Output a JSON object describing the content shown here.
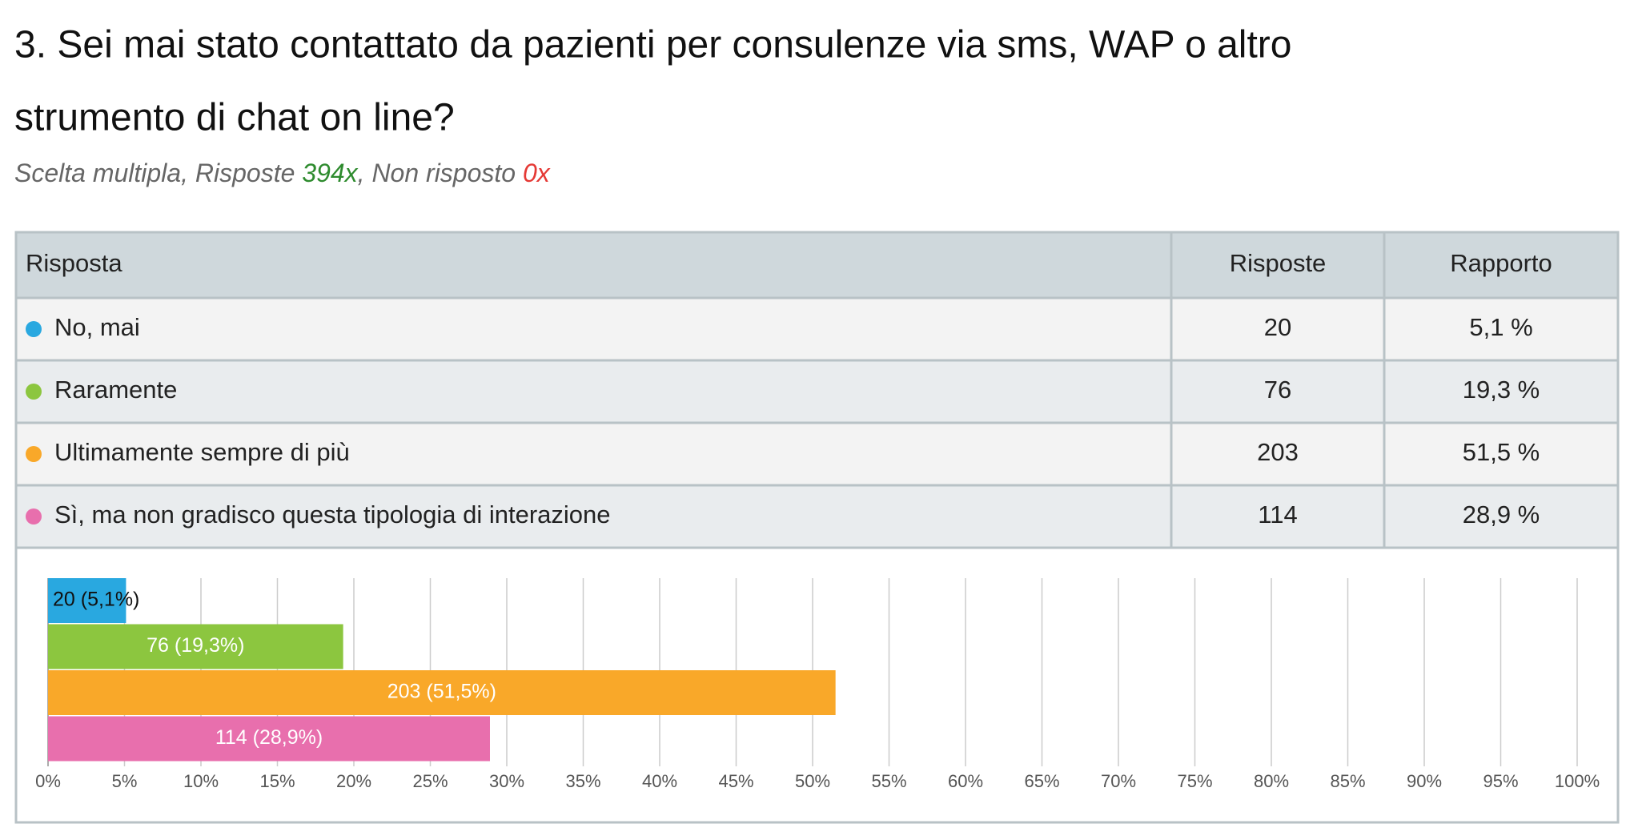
{
  "title_lines": [
    "3. Sei mai stato contattato da pazienti per consulenze via sms, WAP o altro",
    "strumento di chat on line?"
  ],
  "subtitle": [
    "Scelta multipla, Risposte ",
    "394x",
    ", Non risposto ",
    "0x"
  ],
  "table": {
    "header": [
      "Risposta",
      "Risposte",
      "Rapporto"
    ],
    "rows": [
      [
        "No, mai",
        20,
        "5,1 %"
      ],
      [
        "Raramente",
        76,
        "19,3 %"
      ],
      [
        "Ultimamente sempre di più",
        203,
        "51,5 %"
      ],
      [
        "Sì, ma non gradisco questa tipologia di interazione",
        114,
        "28,9 %"
      ]
    ]
  },
  "chart_data": {
    "type": "hbar",
    "categories": [
      null,
      null,
      null,
      null
    ],
    "values": [
      5.1,
      19.3,
      51.5,
      28.9
    ],
    "value_labels": [
      "20 (5,1%)",
      "76 (19,3%)",
      "203 (51,5%)",
      "114 (28,9%)"
    ],
    "colors": [
      "#29a8e0",
      "#8cc63f",
      "#f9a829",
      "#e86fad"
    ],
    "xlim": [
      0,
      100
    ],
    "xticks": [
      {
        "value": 0,
        "label": "0%"
      },
      {
        "value": 5,
        "label": "5%"
      },
      {
        "value": 10,
        "label": "10%"
      },
      {
        "value": 15,
        "label": "15%"
      },
      {
        "value": 20,
        "label": "20%"
      },
      {
        "value": 25,
        "label": "25%"
      },
      {
        "value": 30,
        "label": "30%"
      },
      {
        "value": 35,
        "label": "35%"
      },
      {
        "value": 40,
        "label": "40%"
      },
      {
        "value": 45,
        "label": "45%"
      },
      {
        "value": 50,
        "label": "50%"
      },
      {
        "value": 55,
        "label": "55%"
      },
      {
        "value": 60,
        "label": "60%"
      },
      {
        "value": 65,
        "label": "65%"
      },
      {
        "value": 70,
        "label": "70%"
      },
      {
        "value": 75,
        "label": "75%"
      },
      {
        "value": 80,
        "label": "80%"
      },
      {
        "value": 85,
        "label": "85%"
      },
      {
        "value": 90,
        "label": "90%"
      },
      {
        "value": 95,
        "label": "95%"
      },
      {
        "value": 100,
        "label": "100%"
      }
    ],
    "grid": true
  }
}
